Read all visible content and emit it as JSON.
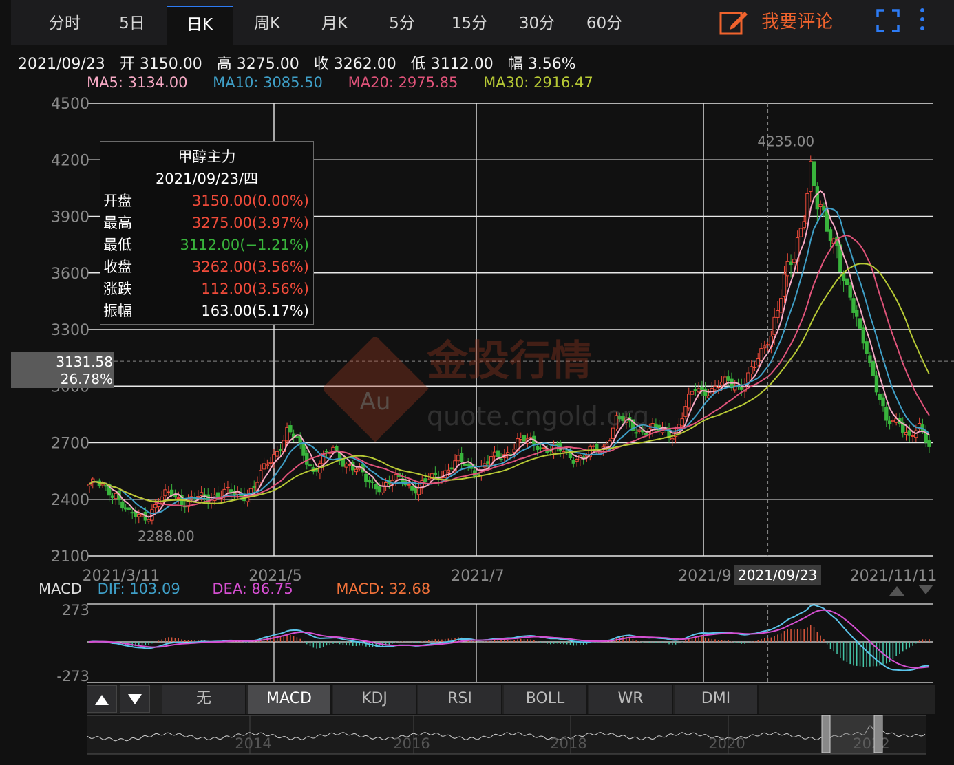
{
  "tabs": [
    "分时",
    "5日",
    "日K",
    "周K",
    "月K",
    "5分",
    "15分",
    "30分",
    "60分"
  ],
  "active_tab": "日K",
  "comment_label": "我要评论",
  "info": {
    "date": "2021/09/23",
    "open_label": "开",
    "open": "3150.00",
    "high_label": "高",
    "high": "3275.00",
    "close_label": "收",
    "close": "3262.00",
    "low_label": "低",
    "low": "3112.00",
    "amp_label": "幅",
    "amp": "3.56%"
  },
  "ma": [
    {
      "label": "MA5: 3134.00",
      "color": "#f6a9c4"
    },
    {
      "label": "MA10: 3085.50",
      "color": "#3f9fc7"
    },
    {
      "label": "MA20: 2975.85",
      "color": "#e0537a"
    },
    {
      "label": "MA30: 2916.47",
      "color": "#b7c935"
    }
  ],
  "tooltip": {
    "title": "甲醇主力",
    "date": "2021/09/23/四",
    "rows": [
      {
        "k": "开盘",
        "v": "3150.00(0.00%)",
        "c": "#f04b3a"
      },
      {
        "k": "最高",
        "v": "3275.00(3.97%)",
        "c": "#f04b3a"
      },
      {
        "k": "最低",
        "v": "3112.00(−1.21%)",
        "c": "#39b43c"
      },
      {
        "k": "收盘",
        "v": "3262.00(3.56%)",
        "c": "#f04b3a"
      },
      {
        "k": "涨跌",
        "v": "112.00(3.56%)",
        "c": "#f04b3a"
      },
      {
        "k": "振幅",
        "v": "163.00(5.17%)",
        "c": "#ffffff"
      }
    ]
  },
  "cursor": {
    "price": "3131.58",
    "pct": "26.78%",
    "date_label": "2021/09/23"
  },
  "watermark": {
    "title": "金投行情",
    "sub": "quote.cngold.org",
    "logo": "Au"
  },
  "macd": {
    "title": "MACD",
    "dif": "DIF: 103.09",
    "dea": "DEA: 86.75",
    "macd": "MACD: 32.68",
    "dif_color": "#3f9fc7",
    "dea_color": "#d64fd2",
    "macd_color": "#f0713a",
    "yticks": [
      "273",
      "-273"
    ]
  },
  "indicators": [
    "无",
    "MACD",
    "KDJ",
    "RSI",
    "BOLL",
    "WR",
    "DMI"
  ],
  "active_indicator": "MACD",
  "nav_years": [
    "2014",
    "2016",
    "2018",
    "2020",
    "2022"
  ],
  "chart_data": {
    "type": "candlestick",
    "title": "甲醇主力",
    "ylim": [
      2100,
      4500
    ],
    "yticks": [
      2100,
      2400,
      2700,
      3000,
      3300,
      3600,
      3900,
      4200,
      4500
    ],
    "xticks": [
      "2021/3/11",
      "2021/5",
      "2021/7",
      "2021/9",
      "2021/11/11"
    ],
    "max_label": "4235.00",
    "min_label": "2288.00",
    "colors": {
      "up": "#f04b3a",
      "down": "#39b43c"
    },
    "anchors": [
      [
        0,
        2480
      ],
      [
        8,
        2440
      ],
      [
        12,
        2300
      ],
      [
        18,
        2330
      ],
      [
        25,
        2440
      ],
      [
        30,
        2380
      ],
      [
        38,
        2430
      ],
      [
        45,
        2420
      ],
      [
        50,
        2460
      ],
      [
        56,
        2640
      ],
      [
        60,
        2760
      ],
      [
        63,
        2700
      ],
      [
        68,
        2560
      ],
      [
        74,
        2660
      ],
      [
        78,
        2600
      ],
      [
        84,
        2500
      ],
      [
        90,
        2470
      ],
      [
        95,
        2510
      ],
      [
        100,
        2450
      ],
      [
        106,
        2540
      ],
      [
        112,
        2590
      ],
      [
        118,
        2560
      ],
      [
        124,
        2620
      ],
      [
        130,
        2700
      ],
      [
        136,
        2700
      ],
      [
        140,
        2660
      ],
      [
        146,
        2640
      ],
      [
        150,
        2620
      ],
      [
        156,
        2680
      ],
      [
        160,
        2820
      ],
      [
        166,
        2780
      ],
      [
        172,
        2760
      ],
      [
        178,
        2760
      ],
      [
        184,
        2990
      ],
      [
        190,
        2980
      ],
      [
        194,
        3020
      ],
      [
        198,
        3010
      ],
      [
        202,
        3090
      ],
      [
        206,
        3260
      ],
      [
        210,
        3480
      ],
      [
        214,
        3680
      ],
      [
        217,
        3960
      ],
      [
        219,
        4170
      ],
      [
        221,
        3930
      ],
      [
        224,
        3830
      ],
      [
        227,
        3780
      ],
      [
        230,
        3480
      ],
      [
        233,
        3320
      ],
      [
        236,
        3210
      ],
      [
        239,
        2990
      ],
      [
        242,
        2790
      ],
      [
        246,
        2830
      ],
      [
        249,
        2730
      ],
      [
        252,
        2760
      ],
      [
        255,
        2690
      ]
    ],
    "cursor_index": 206
  }
}
